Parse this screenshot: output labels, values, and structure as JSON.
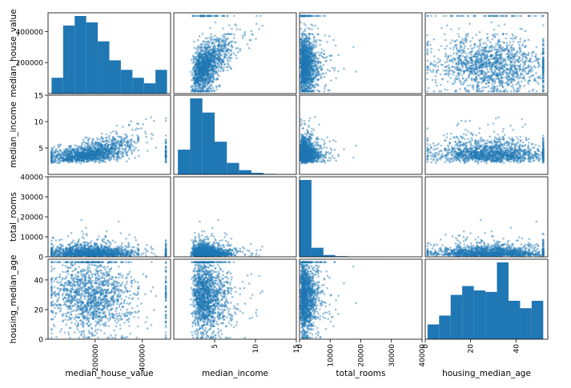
{
  "chart_data": {
    "type": "scatter_matrix",
    "variables": [
      "median_house_value",
      "median_income",
      "total_rooms",
      "housing_median_age"
    ],
    "point_color": "#1f77b4",
    "axis_ranges": {
      "median_house_value": [
        0,
        520000
      ],
      "median_income": [
        0,
        15
      ],
      "total_rooms": [
        0,
        40000
      ],
      "housing_median_age": [
        0,
        54
      ]
    },
    "ticks": {
      "median_house_value": [
        {
          "value": 200000,
          "label": "200000"
        },
        {
          "value": 400000,
          "label": "400000"
        }
      ],
      "median_income": [
        {
          "value": 5,
          "label": "5"
        },
        {
          "value": 10,
          "label": "10"
        },
        {
          "value": 15,
          "label": "15"
        }
      ],
      "total_rooms": [
        {
          "value": 0,
          "label": "0"
        },
        {
          "value": 10000,
          "label": "10000"
        },
        {
          "value": 20000,
          "label": "20000"
        },
        {
          "value": 30000,
          "label": "30000"
        },
        {
          "value": 40000,
          "label": "40000"
        }
      ],
      "housing_median_age": [
        {
          "value": 0,
          "label": "0"
        },
        {
          "value": 20,
          "label": "20"
        },
        {
          "value": 40,
          "label": "40"
        }
      ]
    },
    "diagonal_histograms": {
      "median_house_value": {
        "bins": [
          15000,
          64000,
          113000,
          162000,
          211000,
          260000,
          309000,
          358000,
          407000,
          456000,
          505000
        ],
        "counts": [
          1000,
          4300,
          4900,
          4500,
          3300,
          2100,
          1500,
          1000,
          650,
          1500
        ]
      },
      "median_income": {
        "bins": [
          0.5,
          2.0,
          3.5,
          5.0,
          6.5,
          8.0,
          9.5,
          11.0,
          12.5,
          14.0,
          15.5
        ],
        "counts": [
          2800,
          8600,
          7000,
          3700,
          1300,
          480,
          180,
          60,
          25,
          20
        ]
      },
      "total_rooms": {
        "bins": [
          0,
          3900,
          7800,
          11700,
          15600,
          19500,
          23400,
          27300,
          31200,
          35100,
          39000
        ],
        "counts": [
          17800,
          2100,
          420,
          150,
          60,
          30,
          15,
          10,
          5,
          5
        ]
      },
      "housing_median_age": {
        "bins": [
          1,
          6.1,
          11.2,
          16.3,
          21.4,
          26.5,
          31.6,
          36.7,
          41.8,
          46.9,
          52
        ],
        "counts": [
          1000,
          1600,
          3000,
          3600,
          3300,
          3200,
          5200,
          2600,
          2100,
          2600
        ]
      }
    }
  }
}
